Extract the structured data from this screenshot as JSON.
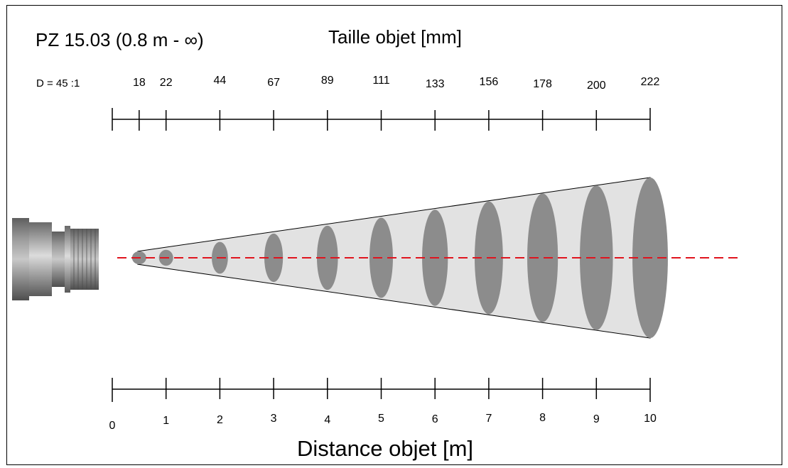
{
  "title": "PZ 15.03 (0.8 m - ∞)",
  "top_axis": {
    "label": "Taille objet [mm]",
    "ratio_label": "D = 45 :1",
    "sizes_mm": [
      18,
      22,
      44,
      67,
      89,
      111,
      133,
      156,
      178,
      200,
      222
    ],
    "size_distances_m": [
      0.5,
      1,
      2,
      3,
      4,
      5,
      6,
      7,
      8,
      9,
      10
    ],
    "tick_labels": [
      "18",
      "22",
      "44",
      "67",
      "89",
      "111",
      "133",
      "156",
      "178",
      "200",
      "222"
    ]
  },
  "bottom_axis": {
    "label": "Distance objet [m]",
    "tick_values": [
      0,
      1,
      2,
      3,
      4,
      5,
      6,
      7,
      8,
      9,
      10
    ],
    "tick_labels": [
      "0",
      "1",
      "2",
      "3",
      "4",
      "5",
      "6",
      "7",
      "8",
      "9",
      "10"
    ]
  },
  "colors": {
    "cone_fill": "#e2e2e2",
    "spot_fill": "#8c8c8c",
    "optical_axis": "#e0141e",
    "sensor_body": "#7d7d7d"
  },
  "icons": {
    "sensor": "pyrometer-sensor-icon"
  }
}
